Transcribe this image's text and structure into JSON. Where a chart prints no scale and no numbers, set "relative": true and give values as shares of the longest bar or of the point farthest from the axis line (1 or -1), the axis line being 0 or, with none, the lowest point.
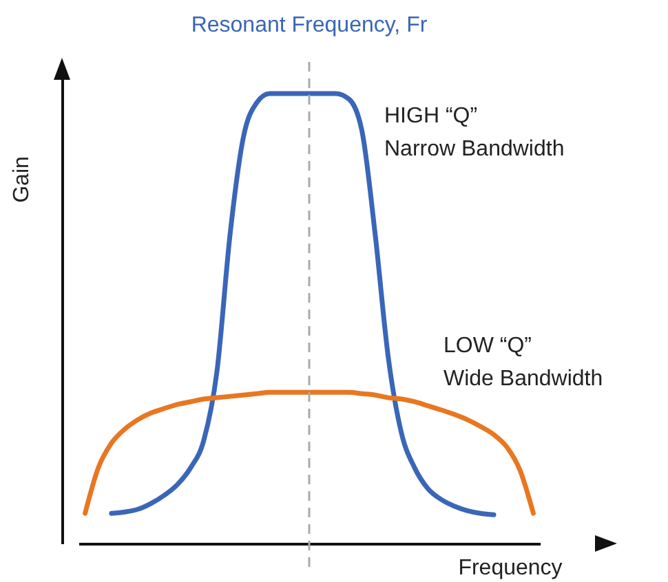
{
  "chart_data": {
    "type": "line",
    "relative": true,
    "xlabel": "Frequency",
    "ylabel": "Gain",
    "legend": false,
    "categories": [
      null,
      null,
      null,
      null,
      null,
      null,
      null,
      null,
      null,
      null,
      null,
      null,
      null,
      null,
      null,
      null,
      null,
      null,
      null,
      null,
      null,
      null,
      null,
      null,
      null,
      null,
      null,
      null,
      null,
      null,
      null,
      null,
      null,
      null,
      null
    ],
    "series": [
      {
        "name": "HIGH “Q”\nNarrow Bandwidth",
        "color": "#3a66b8",
        "values": [
          null,
          null,
          0.067,
          0.07,
          0.076,
          0.089,
          0.107,
          0.131,
          0.168,
          0.229,
          0.382,
          0.688,
          0.902,
          0.979,
          1,
          1,
          1,
          1,
          1,
          1,
          0.988,
          0.917,
          0.688,
          0.413,
          0.245,
          0.168,
          0.122,
          0.098,
          0.083,
          0.073,
          0.067,
          0.064,
          null,
          null,
          null
        ]
      },
      {
        "name": "LOW “Q”\nWide Bandwidth",
        "color": "#e87722",
        "values": [
          0.067,
          0.168,
          0.223,
          0.254,
          0.275,
          0.29,
          0.3,
          0.309,
          0.315,
          0.321,
          0.324,
          0.327,
          0.33,
          0.333,
          0.336,
          0.336,
          0.336,
          0.336,
          0.336,
          0.336,
          0.336,
          0.333,
          0.33,
          0.324,
          0.321,
          0.315,
          0.306,
          0.297,
          0.287,
          0.275,
          0.26,
          0.242,
          0.214,
          0.162,
          0.067
        ]
      }
    ],
    "ref_lines": [
      {
        "axis": "x",
        "label": "Resonant Frequency, Fr",
        "color": "#aaaaaa",
        "line_style": "dashed"
      }
    ]
  }
}
